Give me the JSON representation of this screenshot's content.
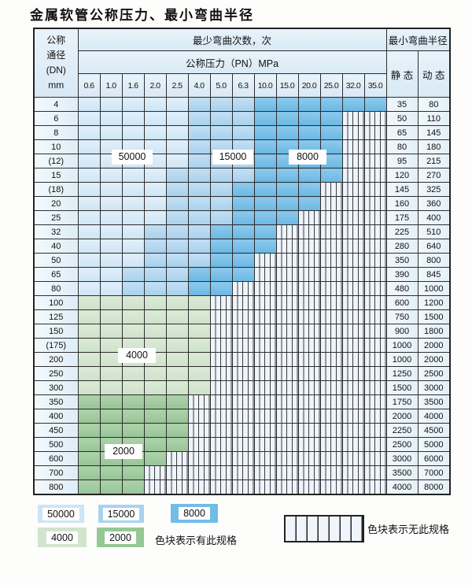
{
  "title": "金属软管公称压力、最小弯曲半径",
  "chart_data": {
    "type": "table",
    "title": "金属软管公称压力、最小弯曲半径",
    "header": {
      "dn_lines": [
        "公称",
        "通径",
        "(DN)",
        "mm"
      ],
      "bend_cycles": "最少弯曲次数，次",
      "pressure": "公称压力（PN）MPa",
      "radius": "最小弯曲半径",
      "static": "静 态",
      "dynamic": "动 态"
    },
    "pressures": [
      "0.6",
      "1.0",
      "1.6",
      "2.0",
      "2.5",
      "4.0",
      "5.0",
      "6.3",
      "10.0",
      "15.0",
      "20.0",
      "25.0",
      "32.0",
      "35.0"
    ],
    "cycle_code_map": {
      "L": "50000",
      "M": "15000",
      "D": "8000",
      "G": "4000",
      "g": "2000",
      "X": "no-spec"
    },
    "rows": [
      {
        "dn": "4",
        "cells": "LLLLLMMMDDDDDD",
        "static": "35",
        "dynamic": "80"
      },
      {
        "dn": "6",
        "cells": "LLLLLMMMDDDDXX",
        "static": "50",
        "dynamic": "110"
      },
      {
        "dn": "8",
        "cells": "LLLLLMMMDDDDXX",
        "static": "65",
        "dynamic": "145"
      },
      {
        "dn": "10",
        "cells": "LLLLLMMMDDDDXX",
        "static": "80",
        "dynamic": "180"
      },
      {
        "dn": "(12)",
        "cells": "LLLLLMMMDDDDXX",
        "static": "95",
        "dynamic": "215"
      },
      {
        "dn": "15",
        "cells": "LLLLMMMMDDDDXX",
        "static": "120",
        "dynamic": "270"
      },
      {
        "dn": "(18)",
        "cells": "LLLLMMMDDDDXXX",
        "static": "145",
        "dynamic": "325"
      },
      {
        "dn": "20",
        "cells": "LLLLMMMDDDDXXX",
        "static": "160",
        "dynamic": "360"
      },
      {
        "dn": "25",
        "cells": "LLLLMMMDDDXXXX",
        "static": "175",
        "dynamic": "400"
      },
      {
        "dn": "32",
        "cells": "LLLMMMDDDXXXXX",
        "static": "225",
        "dynamic": "510"
      },
      {
        "dn": "40",
        "cells": "LLLMMMDDDXXXXX",
        "static": "280",
        "dynamic": "640"
      },
      {
        "dn": "50",
        "cells": "LLLMMMDDXXXXXX",
        "static": "350",
        "dynamic": "800"
      },
      {
        "dn": "65",
        "cells": "LLMMMDDDXXXXXX",
        "static": "390",
        "dynamic": "845"
      },
      {
        "dn": "80",
        "cells": "LLMMMDDXXXXXXX",
        "static": "480",
        "dynamic": "1000"
      },
      {
        "dn": "100",
        "cells": "GGGGGGXXXXXXXX",
        "static": "600",
        "dynamic": "1200"
      },
      {
        "dn": "125",
        "cells": "GGGGGGXXXXXXXX",
        "static": "750",
        "dynamic": "1500"
      },
      {
        "dn": "150",
        "cells": "GGGGGGXXXXXXXX",
        "static": "900",
        "dynamic": "1800"
      },
      {
        "dn": "(175)",
        "cells": "GGGGGGXXXXXXXX",
        "static": "1000",
        "dynamic": "2000"
      },
      {
        "dn": "200",
        "cells": "GGGGGGXXXXXXXX",
        "static": "1000",
        "dynamic": "2000"
      },
      {
        "dn": "250",
        "cells": "GGGGGGXXXXXXXX",
        "static": "1250",
        "dynamic": "2500"
      },
      {
        "dn": "300",
        "cells": "GGGGGGXXXXXXXX",
        "static": "1500",
        "dynamic": "3000"
      },
      {
        "dn": "350",
        "cells": "gggggXXXXXXXXX",
        "static": "1750",
        "dynamic": "3500"
      },
      {
        "dn": "400",
        "cells": "gggggXXXXXXXXX",
        "static": "2000",
        "dynamic": "4000"
      },
      {
        "dn": "450",
        "cells": "gggggXXXXXXXXX",
        "static": "2250",
        "dynamic": "4500"
      },
      {
        "dn": "500",
        "cells": "gggggXXXXXXXXX",
        "static": "2500",
        "dynamic": "5000"
      },
      {
        "dn": "600",
        "cells": "ggggXXXXXXXXXX",
        "static": "3000",
        "dynamic": "6000"
      },
      {
        "dn": "700",
        "cells": "gggXXXXXXXXXXX",
        "static": "3500",
        "dynamic": "7000"
      },
      {
        "dn": "800",
        "cells": "gggXXXXXXXXXXX",
        "static": "4000",
        "dynamic": "8000"
      }
    ]
  },
  "region_labels": {
    "blue_50000": "50000",
    "blue_15000": "15000",
    "blue_8000": "8000",
    "green_4000": "4000",
    "green_2000": "2000"
  },
  "legend": {
    "chips": [
      {
        "value": "50000",
        "code": "L"
      },
      {
        "value": "15000",
        "code": "M"
      },
      {
        "value": "8000",
        "code": "D"
      },
      {
        "value": "4000",
        "code": "G"
      },
      {
        "value": "2000",
        "code": "g"
      }
    ],
    "exists_label": "色块表示有此规格",
    "none_label": "色块表示无此规格"
  },
  "colors": {
    "cycle_50000": "#cfe4f5",
    "cycle_15000": "#a8d3ef",
    "cycle_8000": "#72bde7",
    "cycle_4000": "#d2e4cd",
    "cycle_2000": "#95c894",
    "no_spec_bg": "#eef4fb",
    "grid": "#2e2e2e"
  }
}
